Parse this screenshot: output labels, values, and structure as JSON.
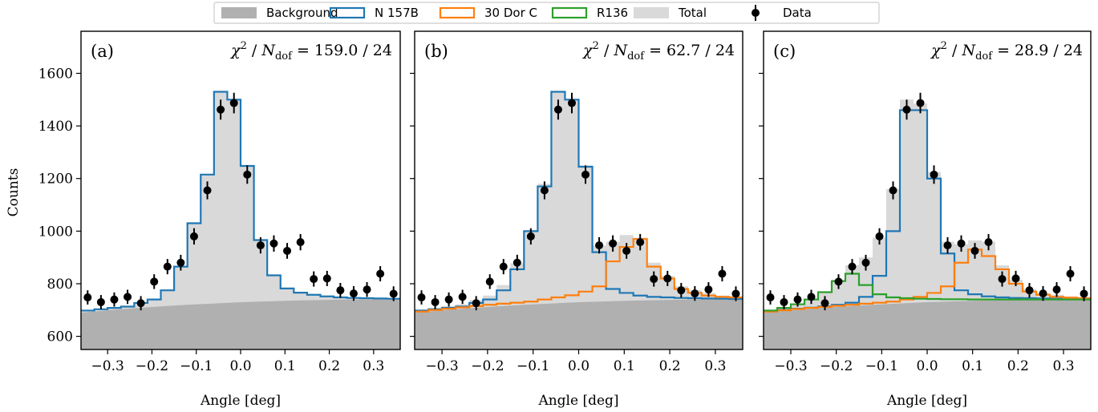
{
  "legend": [
    {
      "name": "Background",
      "kind": "fill",
      "color": "#b0b0b0"
    },
    {
      "name": "N 157B",
      "kind": "step",
      "color": "#1f77b4"
    },
    {
      "name": "30 Dor C",
      "kind": "step",
      "color": "#ff7f0e"
    },
    {
      "name": "R136",
      "kind": "step",
      "color": "#2ca02c"
    },
    {
      "name": "Total",
      "kind": "fill",
      "color": "#d9d9d9"
    },
    {
      "name": "Data",
      "kind": "errorbar",
      "color": "#000000"
    }
  ],
  "ylabel": "Counts",
  "yticks": [
    {
      "value": 600,
      "label": "600"
    },
    {
      "value": 800,
      "label": "800"
    },
    {
      "value": 1000,
      "label": "1000"
    },
    {
      "value": 1200,
      "label": "1200"
    },
    {
      "value": 1400,
      "label": "1400"
    },
    {
      "value": 1600,
      "label": "1600"
    }
  ],
  "xticks": [
    {
      "value": -0.3,
      "label": "−0.3"
    },
    {
      "value": -0.2,
      "label": "−0.2"
    },
    {
      "value": -0.1,
      "label": "−0.1"
    },
    {
      "value": 0.0,
      "label": "0.0"
    },
    {
      "value": 0.1,
      "label": "0.1"
    },
    {
      "value": 0.2,
      "label": "0.2"
    },
    {
      "value": 0.3,
      "label": "0.3"
    }
  ],
  "chart_data": [
    {
      "type": "histogram-step",
      "panel_label": "(a)",
      "chi2": {
        "lhs": "χ",
        "exp": "2",
        "sep": " / ",
        "n": "N",
        "sub": "dof",
        "value": " = 159.0 / 24"
      },
      "xlabel": "Angle [deg]",
      "xlim": [
        -0.36,
        0.36
      ],
      "ylim": [
        550,
        1760
      ],
      "bin_edges": [
        -0.36,
        -0.33,
        -0.3,
        -0.27,
        -0.24,
        -0.21,
        -0.18,
        -0.15,
        -0.12,
        -0.09,
        -0.06,
        -0.03,
        0.0,
        0.03,
        0.06,
        0.09,
        0.12,
        0.15,
        0.18,
        0.21,
        0.24,
        0.27,
        0.3,
        0.33,
        0.36
      ],
      "background": {
        "x": [
          -0.36,
          -0.3,
          -0.24,
          -0.18,
          -0.12,
          -0.06,
          0.0,
          0.06,
          0.12,
          0.18,
          0.24,
          0.3,
          0.36
        ],
        "y": [
          690,
          699,
          707,
          714,
          720,
          725,
          730,
          733,
          736,
          738,
          740,
          741,
          742
        ]
      },
      "total": [
        698,
        703,
        708,
        713,
        727,
        740,
        775,
        865,
        1030,
        1215,
        1530,
        1500,
        1248,
        966,
        832,
        782,
        766,
        758,
        752,
        748,
        746,
        745,
        744,
        743
      ],
      "series": [
        {
          "name": "N 157B",
          "values": [
            698,
            703,
            708,
            713,
            727,
            740,
            775,
            865,
            1030,
            1215,
            1530,
            1500,
            1248,
            966,
            832,
            782,
            766,
            758,
            752,
            748,
            746,
            745,
            744,
            743
          ]
        }
      ],
      "data": {
        "x": [
          -0.345,
          -0.315,
          -0.285,
          -0.255,
          -0.225,
          -0.195,
          -0.165,
          -0.135,
          -0.105,
          -0.075,
          -0.045,
          -0.015,
          0.015,
          0.045,
          0.075,
          0.105,
          0.135,
          0.165,
          0.195,
          0.225,
          0.255,
          0.285,
          0.315,
          0.345
        ],
        "y": [
          748,
          730,
          740,
          750,
          726,
          808,
          865,
          880,
          980,
          1155,
          1462,
          1487,
          1215,
          946,
          953,
          925,
          958,
          818,
          820,
          775,
          763,
          778,
          838,
          762
        ],
        "err": [
          27,
          27,
          27,
          27,
          27,
          28,
          29,
          30,
          31,
          34,
          38,
          39,
          35,
          31,
          31,
          30,
          31,
          29,
          29,
          28,
          28,
          28,
          29,
          28
        ]
      }
    },
    {
      "type": "histogram-step",
      "panel_label": "(b)",
      "chi2": {
        "lhs": "χ",
        "exp": "2",
        "sep": " / ",
        "n": "N",
        "sub": "dof",
        "value": " = 62.7 / 24"
      },
      "xlabel": "Angle [deg]",
      "xlim": [
        -0.36,
        0.36
      ],
      "ylim": [
        550,
        1760
      ],
      "bin_edges": [
        -0.36,
        -0.33,
        -0.3,
        -0.27,
        -0.24,
        -0.21,
        -0.18,
        -0.15,
        -0.12,
        -0.09,
        -0.06,
        -0.03,
        0.0,
        0.03,
        0.06,
        0.09,
        0.12,
        0.15,
        0.18,
        0.21,
        0.24,
        0.27,
        0.3,
        0.33,
        0.36
      ],
      "background": {
        "x": [
          -0.36,
          -0.3,
          -0.24,
          -0.18,
          -0.12,
          -0.06,
          0.0,
          0.06,
          0.12,
          0.18,
          0.24,
          0.3,
          0.36
        ],
        "y": [
          690,
          699,
          707,
          714,
          720,
          725,
          730,
          733,
          736,
          738,
          740,
          741,
          742
        ]
      },
      "total": [
        702,
        708,
        715,
        722,
        738,
        755,
        795,
        878,
        1000,
        1180,
        1530,
        1500,
        1250,
        945,
        960,
        985,
        975,
        880,
        830,
        790,
        775,
        765,
        755,
        750
      ],
      "series": [
        {
          "name": "N 157B",
          "values": [
            698,
            703,
            708,
            713,
            727,
            740,
            775,
            855,
            1000,
            1170,
            1530,
            1500,
            1245,
            920,
            780,
            765,
            755,
            750,
            748,
            746,
            745,
            744,
            743,
            742
          ]
        },
        {
          "name": "30 Dor C",
          "values": [
            694,
            700,
            705,
            710,
            715,
            720,
            724,
            728,
            732,
            740,
            748,
            756,
            770,
            790,
            885,
            940,
            970,
            865,
            820,
            780,
            765,
            755,
            750,
            748
          ]
        }
      ],
      "data": {
        "x": [
          -0.345,
          -0.315,
          -0.285,
          -0.255,
          -0.225,
          -0.195,
          -0.165,
          -0.135,
          -0.105,
          -0.075,
          -0.045,
          -0.015,
          0.015,
          0.045,
          0.075,
          0.105,
          0.135,
          0.165,
          0.195,
          0.225,
          0.255,
          0.285,
          0.315,
          0.345
        ],
        "y": [
          748,
          730,
          740,
          750,
          726,
          808,
          865,
          880,
          980,
          1155,
          1462,
          1487,
          1215,
          946,
          953,
          925,
          958,
          818,
          820,
          775,
          763,
          778,
          838,
          762
        ],
        "err": [
          27,
          27,
          27,
          27,
          27,
          28,
          29,
          30,
          31,
          34,
          38,
          39,
          35,
          31,
          31,
          30,
          31,
          29,
          29,
          28,
          28,
          28,
          29,
          28
        ]
      }
    },
    {
      "type": "histogram-step",
      "panel_label": "(c)",
      "chi2": {
        "lhs": "χ",
        "exp": "2",
        "sep": " / ",
        "n": "N",
        "sub": "dof",
        "value": " = 28.9 / 24"
      },
      "xlabel": "Angle [deg]",
      "xlim": [
        -0.36,
        0.36
      ],
      "ylim": [
        550,
        1760
      ],
      "bin_edges": [
        -0.36,
        -0.33,
        -0.3,
        -0.27,
        -0.24,
        -0.21,
        -0.18,
        -0.15,
        -0.12,
        -0.09,
        -0.06,
        -0.03,
        0.0,
        0.03,
        0.06,
        0.09,
        0.12,
        0.15,
        0.18,
        0.21,
        0.24,
        0.27,
        0.3,
        0.33,
        0.36
      ],
      "background": {
        "x": [
          -0.36,
          -0.3,
          -0.24,
          -0.18,
          -0.12,
          -0.06,
          0.0,
          0.06,
          0.12,
          0.18,
          0.24,
          0.3,
          0.36
        ],
        "y": [
          690,
          699,
          707,
          714,
          720,
          725,
          730,
          733,
          736,
          738,
          740,
          741,
          742
        ]
      },
      "total": [
        702,
        712,
        725,
        742,
        770,
        815,
        870,
        900,
        975,
        1160,
        1500,
        1485,
        1225,
        960,
        950,
        965,
        960,
        870,
        815,
        780,
        765,
        758,
        752,
        748
      ],
      "series": [
        {
          "name": "N 157B",
          "values": [
            695,
            700,
            705,
            709,
            714,
            720,
            728,
            750,
            830,
            1000,
            1460,
            1460,
            1200,
            915,
            775,
            760,
            752,
            748,
            746,
            745,
            744,
            743,
            742,
            742
          ]
        },
        {
          "name": "30 Dor C",
          "values": [
            694,
            699,
            704,
            708,
            712,
            716,
            720,
            724,
            728,
            732,
            740,
            750,
            765,
            790,
            880,
            930,
            905,
            855,
            800,
            770,
            758,
            750,
            747,
            745
          ]
        },
        {
          "name": "R136",
          "values": [
            698,
            708,
            722,
            740,
            768,
            810,
            838,
            795,
            760,
            748,
            745,
            743,
            742,
            741,
            741,
            740,
            740,
            740,
            740,
            740,
            740,
            740,
            740,
            740
          ]
        }
      ],
      "data": {
        "x": [
          -0.345,
          -0.315,
          -0.285,
          -0.255,
          -0.225,
          -0.195,
          -0.165,
          -0.135,
          -0.105,
          -0.075,
          -0.045,
          -0.015,
          0.015,
          0.045,
          0.075,
          0.105,
          0.135,
          0.165,
          0.195,
          0.225,
          0.255,
          0.285,
          0.315,
          0.345
        ],
        "y": [
          748,
          730,
          740,
          750,
          726,
          808,
          865,
          880,
          980,
          1155,
          1462,
          1487,
          1215,
          946,
          953,
          925,
          958,
          818,
          820,
          775,
          763,
          778,
          838,
          762
        ],
        "err": [
          27,
          27,
          27,
          27,
          27,
          28,
          29,
          30,
          31,
          34,
          38,
          39,
          35,
          31,
          31,
          30,
          31,
          29,
          29,
          28,
          28,
          28,
          29,
          28
        ]
      }
    }
  ]
}
